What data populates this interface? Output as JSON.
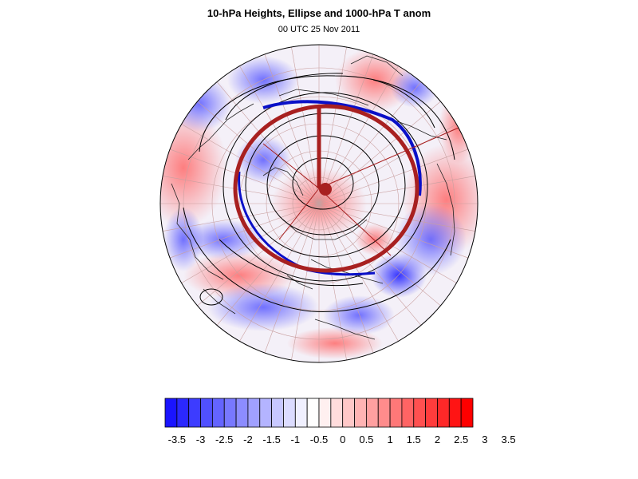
{
  "figure": {
    "title": "10-hPa Heights, Ellipse and 1000-hPa T anom",
    "subtitle": "00 UTC 25 Nov 2011"
  },
  "map": {
    "projection": "north polar stereographic",
    "colors": {
      "warm_anomaly": "#ff2020",
      "cold_anomaly": "#2020ff",
      "ellipse": "#a82020",
      "height_contour_highlight": "#0a10c8",
      "coastline": "#222222",
      "contour": "#000000"
    }
  },
  "colorbar": {
    "colors": [
      "#1a14ff",
      "#2b28ff",
      "#3d3cff",
      "#5050ff",
      "#6464ff",
      "#7878ff",
      "#8c8cff",
      "#a0a0ff",
      "#b4b4ff",
      "#c8c8ff",
      "#dcdcff",
      "#f0f0ff",
      "#ffffff",
      "#fff0f0",
      "#ffdcdc",
      "#ffc8c8",
      "#ffb4b4",
      "#ffa0a0",
      "#ff8c8c",
      "#ff7878",
      "#ff6464",
      "#ff5050",
      "#ff3c3c",
      "#ff2828",
      "#ff1414",
      "#ff0000"
    ],
    "labels": [
      "-3.5",
      "-3",
      "-2.5",
      "-2",
      "-1.5",
      "-1",
      "-0.5",
      "0",
      "0.5",
      "1",
      "1.5",
      "2",
      "2.5",
      "3",
      "3.5"
    ]
  }
}
